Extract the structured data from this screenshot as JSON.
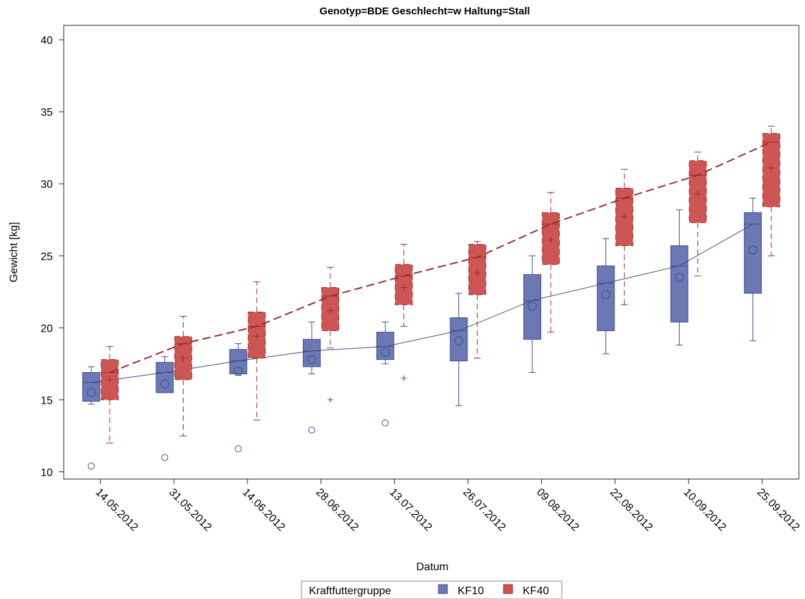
{
  "chart_data": {
    "type": "box",
    "title": "Genotyp=BDE Geschlecht=w Haltung=Stall",
    "xlabel": "Datum",
    "ylabel": "Gewicht [kg]",
    "ylim": [
      9.5,
      41
    ],
    "yticks": [
      10,
      15,
      20,
      25,
      30,
      35,
      40
    ],
    "grid": false,
    "legend": {
      "title": "Kraftfuttergruppe",
      "placement": "bottom"
    },
    "categories": [
      "14.05.2012",
      "31.05.2012",
      "14.06.2012",
      "28.06.2012",
      "13.07.2012",
      "26.07.2012",
      "09.08.2012",
      "22.08.2012",
      "10.09.2012",
      "25.09.2012"
    ],
    "series": [
      {
        "name": "KF10",
        "color": "#6b78b4",
        "edge": "#3c4a8c",
        "connect": "median",
        "line_style": "solid",
        "mean_marker": "circle",
        "boxes": [
          {
            "whisker_low": 14.7,
            "q1": 14.9,
            "median": 16.2,
            "q3": 16.9,
            "whisker_high": 17.3,
            "mean": 15.5,
            "outliers": [
              10.4
            ]
          },
          {
            "whisker_low": 15.5,
            "q1": 15.5,
            "median": 16.9,
            "q3": 17.6,
            "whisker_high": 18.0,
            "mean": 16.1,
            "outliers": [
              11.0
            ]
          },
          {
            "whisker_low": 16.7,
            "q1": 16.8,
            "median": 17.7,
            "q3": 18.5,
            "whisker_high": 18.9,
            "mean": 17.0,
            "outliers": [
              11.6
            ]
          },
          {
            "whisker_low": 16.8,
            "q1": 17.3,
            "median": 18.4,
            "q3": 19.2,
            "whisker_high": 20.4,
            "mean": 17.8,
            "outliers": [
              12.9
            ]
          },
          {
            "whisker_low": 17.5,
            "q1": 17.8,
            "median": 18.7,
            "q3": 19.7,
            "whisker_high": 20.4,
            "mean": 18.3,
            "outliers": [
              13.4
            ]
          },
          {
            "whisker_low": 14.6,
            "q1": 17.7,
            "median": 19.8,
            "q3": 20.7,
            "whisker_high": 22.4,
            "mean": 19.1,
            "outliers": []
          },
          {
            "whisker_low": 16.9,
            "q1": 19.2,
            "median": 21.9,
            "q3": 23.7,
            "whisker_high": 25.0,
            "mean": 21.5,
            "outliers": []
          },
          {
            "whisker_low": 18.2,
            "q1": 19.8,
            "median": 23.1,
            "q3": 24.3,
            "whisker_high": 26.2,
            "mean": 22.3,
            "outliers": []
          },
          {
            "whisker_low": 18.8,
            "q1": 20.4,
            "median": 24.3,
            "q3": 25.7,
            "whisker_high": 28.2,
            "mean": 23.5,
            "outliers": []
          },
          {
            "whisker_low": 19.1,
            "q1": 22.4,
            "median": 27.2,
            "q3": 28.0,
            "whisker_high": 29.0,
            "mean": 25.4,
            "outliers": []
          }
        ]
      },
      {
        "name": "KF40",
        "color": "#cd5655",
        "edge": "#9e2a2a",
        "connect": "median",
        "line_style": "dashed",
        "mean_marker": "plus",
        "boxes": [
          {
            "whisker_low": 12.0,
            "q1": 15.0,
            "median": 16.9,
            "q3": 17.8,
            "whisker_high": 18.7,
            "mean": 16.4,
            "outliers": []
          },
          {
            "whisker_low": 12.5,
            "q1": 16.4,
            "median": 18.9,
            "q3": 19.4,
            "whisker_high": 20.8,
            "mean": 17.9,
            "outliers": []
          },
          {
            "whisker_low": 13.6,
            "q1": 17.9,
            "median": 20.1,
            "q3": 21.1,
            "whisker_high": 23.2,
            "mean": 19.4,
            "outliers": []
          },
          {
            "whisker_low": 18.6,
            "q1": 19.8,
            "median": 22.2,
            "q3": 22.8,
            "whisker_high": 24.2,
            "mean": 21.2,
            "outliers": [
              15.0
            ]
          },
          {
            "whisker_low": 20.1,
            "q1": 21.6,
            "median": 23.6,
            "q3": 24.4,
            "whisker_high": 25.8,
            "mean": 22.8,
            "outliers": [
              16.5
            ]
          },
          {
            "whisker_low": 17.9,
            "q1": 22.3,
            "median": 24.9,
            "q3": 25.8,
            "whisker_high": 26.0,
            "mean": 23.8,
            "outliers": []
          },
          {
            "whisker_low": 19.7,
            "q1": 24.4,
            "median": 27.2,
            "q3": 28.0,
            "whisker_high": 29.4,
            "mean": 26.1,
            "outliers": []
          },
          {
            "whisker_low": 21.6,
            "q1": 25.7,
            "median": 29.0,
            "q3": 29.7,
            "whisker_high": 31.0,
            "mean": 27.7,
            "outliers": []
          },
          {
            "whisker_low": 23.6,
            "q1": 27.3,
            "median": 30.6,
            "q3": 31.6,
            "whisker_high": 32.2,
            "mean": 29.3,
            "outliers": []
          },
          {
            "whisker_low": 25.0,
            "q1": 28.4,
            "median": 32.9,
            "q3": 33.5,
            "whisker_high": 34.0,
            "mean": 31.1,
            "outliers": []
          }
        ]
      }
    ]
  }
}
